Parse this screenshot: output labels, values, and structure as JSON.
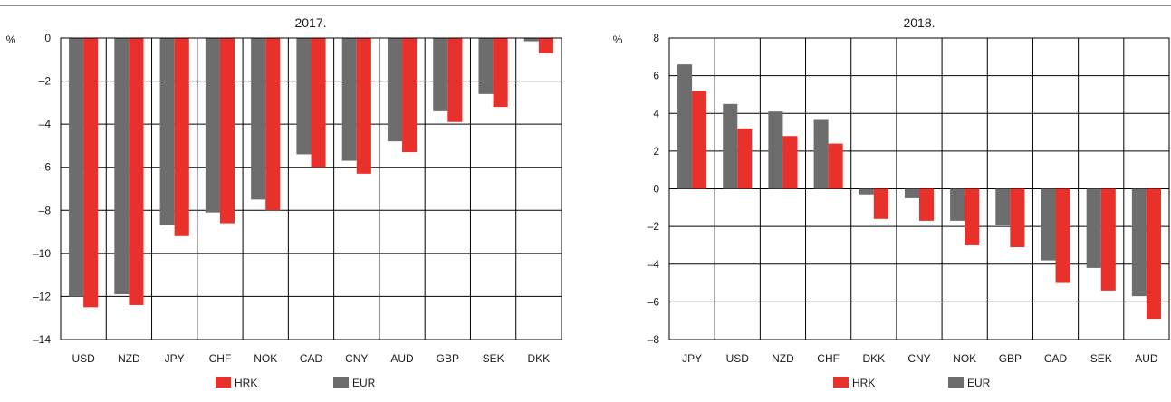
{
  "colors": {
    "HRK": "#e8312a",
    "EUR": "#6d6d6d",
    "grid": "#000000",
    "frame": "#000000"
  },
  "chart_data": [
    {
      "type": "bar",
      "title": "2017.",
      "ylabel": "%",
      "ylim": [
        -14,
        0
      ],
      "yticks": [
        0,
        -2,
        -4,
        -6,
        -8,
        -10,
        -12,
        -14
      ],
      "ytick_labels": [
        "0",
        "–2",
        "–4",
        "–6",
        "–8",
        "–10",
        "–12",
        "–14"
      ],
      "categories": [
        "USD",
        "NZD",
        "JPY",
        "CHF",
        "NOK",
        "CAD",
        "CNY",
        "AUD",
        "GBP",
        "SEK",
        "DKK"
      ],
      "series": [
        {
          "name": "EUR",
          "values": [
            -12.0,
            -11.9,
            -8.7,
            -8.1,
            -7.5,
            -5.4,
            -5.7,
            -4.8,
            -3.4,
            -2.6,
            -0.15
          ]
        },
        {
          "name": "HRK",
          "values": [
            -12.5,
            -12.4,
            -9.2,
            -8.6,
            -8.0,
            -6.0,
            -6.3,
            -5.3,
            -3.9,
            -3.2,
            -0.7
          ]
        }
      ],
      "legend": [
        {
          "name": "HRK"
        },
        {
          "name": "EUR"
        }
      ],
      "grid": true
    },
    {
      "type": "bar",
      "title": "2018.",
      "ylabel": "%",
      "ylim": [
        -8,
        8
      ],
      "yticks": [
        8,
        6,
        4,
        2,
        0,
        -2,
        -4,
        -6,
        -8
      ],
      "ytick_labels": [
        "8",
        "6",
        "4",
        "2",
        "0",
        "–2",
        "–4",
        "–6",
        "–8"
      ],
      "categories": [
        "JPY",
        "USD",
        "NZD",
        "CHF",
        "DKK",
        "CNY",
        "NOK",
        "GBP",
        "CAD",
        "SEK",
        "AUD"
      ],
      "series": [
        {
          "name": "EUR",
          "values": [
            6.6,
            4.5,
            4.1,
            3.7,
            -0.3,
            -0.5,
            -1.7,
            -1.9,
            -3.8,
            -4.2,
            -5.7
          ]
        },
        {
          "name": "HRK",
          "values": [
            5.2,
            3.2,
            2.8,
            2.4,
            -1.6,
            -1.7,
            -3.0,
            -3.1,
            -5.0,
            -5.4,
            -6.9
          ]
        }
      ],
      "legend": [
        {
          "name": "HRK"
        },
        {
          "name": "EUR"
        }
      ],
      "grid": true
    }
  ]
}
